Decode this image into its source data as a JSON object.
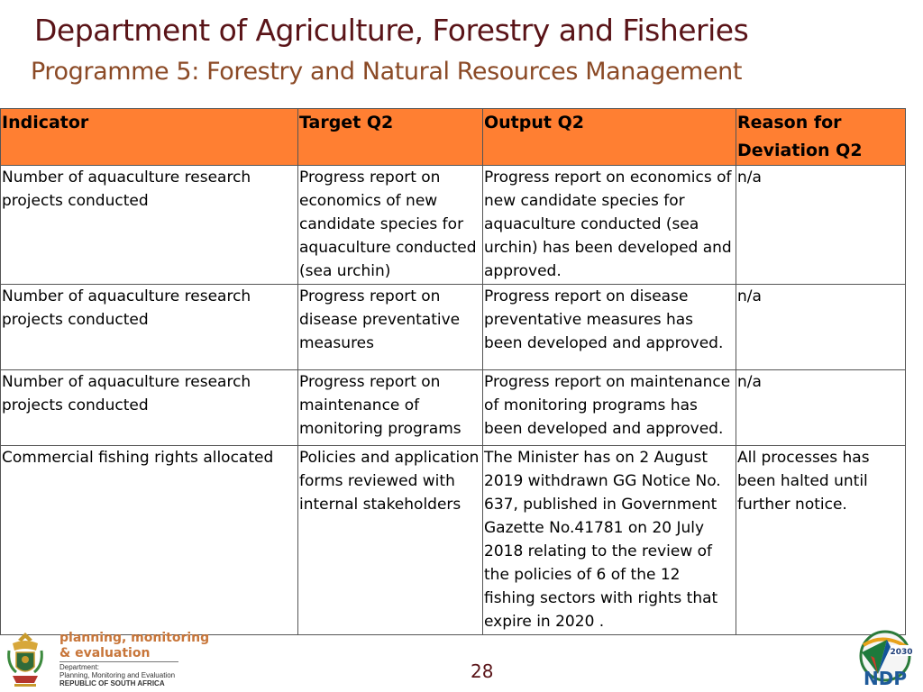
{
  "header": {
    "title": "Department of Agriculture, Forestry and Fisheries",
    "subtitle": "Programme 5: Forestry and Natural Resources Management"
  },
  "table": {
    "columns": [
      "Indicator",
      "Target Q2",
      "Output Q2",
      "Reason for Deviation Q2"
    ],
    "rows": [
      {
        "indicator": "Number of aquaculture research projects conducted",
        "target": "Progress report on economics of new candidate species for aquaculture conducted (sea urchin)",
        "output": "Progress report on economics of new candidate species for aquaculture conducted (sea urchin) has been developed and approved.",
        "reason": "n/a"
      },
      {
        "indicator": "Number of aquaculture research projects conducted",
        "target": "Progress report on disease preventative measures",
        "output": "Progress report on disease preventative measures has been developed and approved.",
        "reason": "n/a"
      },
      {
        "indicator": "Number of aquaculture research projects conducted",
        "target": "Progress report on maintenance of monitoring programs",
        "output": "Progress report on maintenance of monitoring programs has been developed and approved.",
        "reason": "n/a"
      },
      {
        "indicator": "Commercial fishing rights allocated",
        "target": "Policies and application forms reviewed with internal stakeholders",
        "output": "The Minister has on 2 August 2019 withdrawn GG Notice No. 637, published in Government Gazette No.41781 on 20 July 2018 relating to the review of the policies of 6 of the 12 fishing sectors with rights that expire in 2020 .",
        "reason": "All processes has been halted until further notice."
      }
    ]
  },
  "footer": {
    "pme_line1": "planning, monitoring",
    "pme_line2": "& evaluation",
    "dept_line1": "Department:",
    "dept_line2": "Planning, Monitoring and Evaluation",
    "dept_line3": "REPUBLIC OF SOUTH AFRICA",
    "page_number": "28",
    "ndp_year": "2030",
    "ndp_text": "NDP"
  },
  "colors": {
    "header_fill": "#ff7f32",
    "title": "#5a1418",
    "subtitle": "#8b4a26"
  }
}
